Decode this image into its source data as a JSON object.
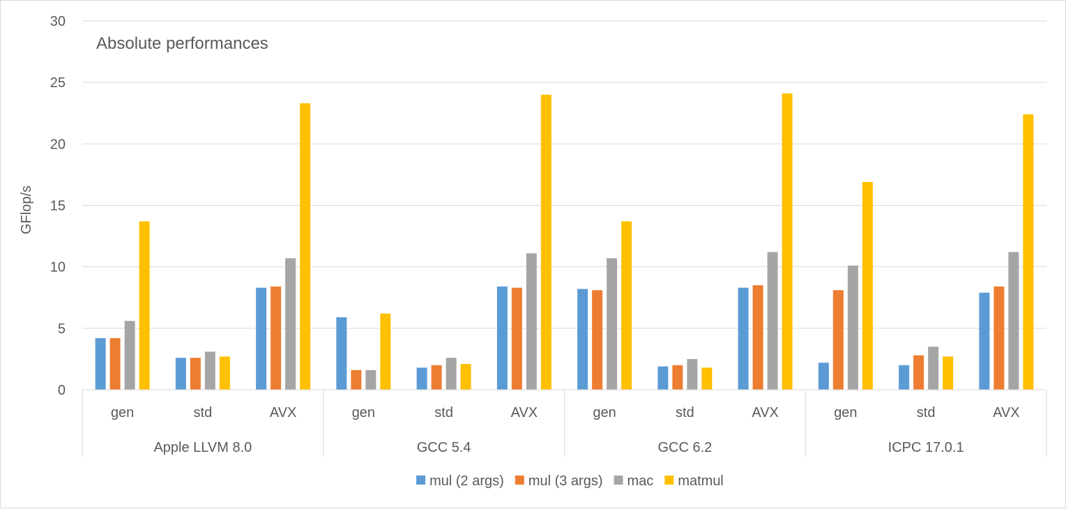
{
  "chart_data": {
    "type": "bar",
    "title": "Absolute performances",
    "xlabel": "",
    "ylabel": "GFlop/s",
    "ylim": [
      0,
      30
    ],
    "yticks": [
      0,
      5,
      10,
      15,
      20,
      25,
      30
    ],
    "grid": true,
    "legend_position": "bottom",
    "groups": [
      {
        "label": "Apple LLVM 8.0",
        "categories": [
          "gen",
          "std",
          "AVX"
        ]
      },
      {
        "label": "GCC 5.4",
        "categories": [
          "gen",
          "std",
          "AVX"
        ]
      },
      {
        "label": "GCC 6.2",
        "categories": [
          "gen",
          "std",
          "AVX"
        ]
      },
      {
        "label": "ICPC 17.0.1",
        "categories": [
          "gen",
          "std",
          "AVX"
        ]
      }
    ],
    "series": [
      {
        "name": "mul (2 args)",
        "color": "#5b9bd5",
        "values": [
          4.2,
          2.6,
          8.3,
          5.9,
          1.8,
          8.4,
          8.2,
          1.9,
          8.3,
          2.2,
          2.0,
          7.9
        ]
      },
      {
        "name": "mul (3 args)",
        "color": "#ed7d31",
        "values": [
          4.2,
          2.6,
          8.4,
          1.6,
          2.0,
          8.3,
          8.1,
          2.0,
          8.5,
          8.1,
          2.8,
          8.4
        ]
      },
      {
        "name": "mac",
        "color": "#a5a5a5",
        "values": [
          5.6,
          3.1,
          10.7,
          1.6,
          2.6,
          11.1,
          10.7,
          2.5,
          11.2,
          10.1,
          3.5,
          11.2
        ]
      },
      {
        "name": "matmul",
        "color": "#ffc000",
        "values": [
          13.7,
          2.7,
          23.3,
          6.2,
          2.1,
          24.0,
          13.7,
          1.8,
          24.1,
          16.9,
          2.7,
          22.4
        ]
      }
    ]
  }
}
